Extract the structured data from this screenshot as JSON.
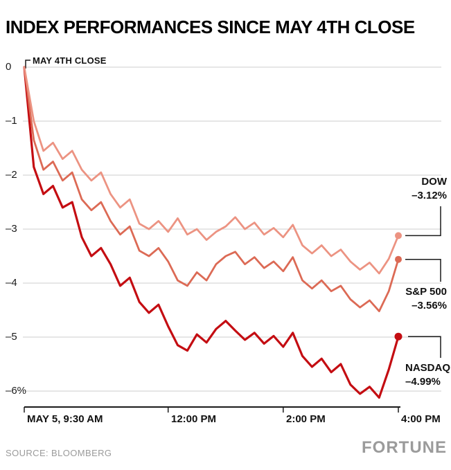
{
  "footer": {
    "source": "SOURCE: BLOOMBERG",
    "brand": "FORTUNE"
  },
  "chart_data": {
    "type": "line",
    "title": "INDEX PERFORMANCES SINCE MAY 4TH CLOSE",
    "annotation": "MAY 4TH CLOSE",
    "xlabel": "",
    "ylabel": "",
    "grid": true,
    "legend_position": "right-annotated",
    "y_axis": {
      "min": -6,
      "max": 0,
      "ticks": [
        0,
        -1,
        -2,
        -3,
        -4,
        -5,
        -6
      ],
      "tick_labels": [
        "0",
        "–1",
        "–2",
        "–3",
        "–4",
        "–5",
        "–6%"
      ]
    },
    "x_axis": {
      "unit": "minutes since 9:30 AM",
      "range_minutes": [
        0,
        390
      ],
      "ticks": [
        {
          "minute": 0,
          "label": "MAY 5, 9:30 AM"
        },
        {
          "minute": 150,
          "label": "12:00 PM"
        },
        {
          "minute": 270,
          "label": "2:00 PM"
        },
        {
          "minute": 390,
          "label": "4:00 PM"
        }
      ]
    },
    "x_minutes": [
      0,
      10,
      20,
      30,
      40,
      50,
      60,
      70,
      80,
      90,
      100,
      110,
      120,
      130,
      140,
      150,
      160,
      170,
      180,
      190,
      200,
      210,
      220,
      230,
      240,
      250,
      260,
      270,
      280,
      290,
      300,
      310,
      320,
      330,
      340,
      350,
      360,
      370,
      380,
      390
    ],
    "series": [
      {
        "name": "DOW",
        "final_label": "–3.12%",
        "final_value": -3.12,
        "color": "#ec9382",
        "values": [
          0,
          -1.0,
          -1.55,
          -1.4,
          -1.7,
          -1.55,
          -1.9,
          -2.1,
          -1.95,
          -2.35,
          -2.6,
          -2.45,
          -2.9,
          -3.0,
          -2.85,
          -3.05,
          -2.8,
          -3.1,
          -3.0,
          -3.2,
          -3.05,
          -2.95,
          -2.78,
          -3.0,
          -2.88,
          -3.1,
          -2.98,
          -3.15,
          -2.92,
          -3.3,
          -3.45,
          -3.3,
          -3.5,
          -3.38,
          -3.6,
          -3.75,
          -3.62,
          -3.82,
          -3.55,
          -3.12
        ]
      },
      {
        "name": "S&P 500",
        "final_label": "–3.56%",
        "final_value": -3.56,
        "color": "#dc6a55",
        "values": [
          0,
          -1.35,
          -1.9,
          -1.75,
          -2.1,
          -1.95,
          -2.45,
          -2.65,
          -2.5,
          -2.85,
          -3.1,
          -2.95,
          -3.4,
          -3.5,
          -3.35,
          -3.6,
          -3.95,
          -4.05,
          -3.8,
          -3.95,
          -3.65,
          -3.5,
          -3.42,
          -3.65,
          -3.52,
          -3.72,
          -3.6,
          -3.78,
          -3.52,
          -3.95,
          -4.1,
          -3.95,
          -4.15,
          -4.05,
          -4.3,
          -4.45,
          -4.32,
          -4.52,
          -4.15,
          -3.56
        ]
      },
      {
        "name": "NASDAQ",
        "final_label": "–4.99%",
        "final_value": -4.99,
        "color": "#c40d12",
        "values": [
          0,
          -1.85,
          -2.35,
          -2.2,
          -2.6,
          -2.5,
          -3.15,
          -3.5,
          -3.35,
          -3.65,
          -4.05,
          -3.9,
          -4.35,
          -4.55,
          -4.4,
          -4.8,
          -5.15,
          -5.25,
          -4.95,
          -5.1,
          -4.85,
          -4.7,
          -4.88,
          -5.05,
          -4.92,
          -5.12,
          -4.98,
          -5.18,
          -4.92,
          -5.35,
          -5.55,
          -5.4,
          -5.65,
          -5.5,
          -5.88,
          -6.05,
          -5.92,
          -6.12,
          -5.6,
          -4.99
        ]
      }
    ],
    "colors": {
      "grid": "#cccccc",
      "axis": "#1a1a1a",
      "connector": "#1a1a1a",
      "text": "#000000"
    }
  }
}
